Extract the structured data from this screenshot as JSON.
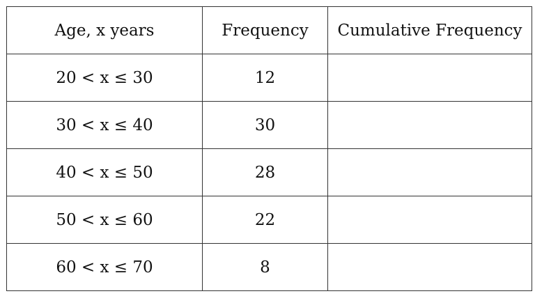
{
  "table": {
    "header": [
      "Age, x years",
      "Frequency",
      "Cumulative Frequency"
    ],
    "rows": [
      [
        "20 < x ≤ 30",
        12
      ],
      [
        "30 < x ≤ 40",
        30
      ],
      [
        "40 < x ≤ 50",
        28
      ],
      [
        "50 < x ≤ 60",
        22
      ],
      [
        "60 < x ≤ 70",
        8
      ]
    ]
  }
}
